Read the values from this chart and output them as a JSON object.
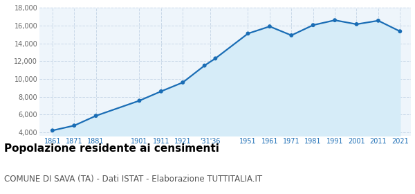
{
  "years": [
    1861,
    1871,
    1881,
    1901,
    1911,
    1921,
    1931,
    1936,
    1951,
    1961,
    1971,
    1981,
    1991,
    2001,
    2011,
    2021
  ],
  "population": [
    4200,
    4750,
    5850,
    7550,
    8600,
    9600,
    11500,
    12300,
    15100,
    15900,
    14900,
    16050,
    16600,
    16150,
    16550,
    15350
  ],
  "x_tick_labels": [
    "1861",
    "1871",
    "1881",
    "1901",
    "1911",
    "1921",
    "'31'36",
    "1951",
    "1961",
    "1971",
    "1981",
    "1991",
    "2001",
    "2011",
    "2021"
  ],
  "x_tick_positions": [
    1861,
    1871,
    1881,
    1901,
    1911,
    1921,
    1933.5,
    1951,
    1961,
    1971,
    1981,
    1991,
    2001,
    2011,
    2021
  ],
  "xlim": [
    1855,
    2026
  ],
  "ylim": [
    3600,
    18000
  ],
  "yticks": [
    4000,
    6000,
    8000,
    10000,
    12000,
    14000,
    16000,
    18000
  ],
  "ytick_labels": [
    "4,000",
    "6,000",
    "8,000",
    "10,000",
    "12,000",
    "14,000",
    "16,000",
    "18,000"
  ],
  "line_color": "#1a6db5",
  "fill_color": "#d6ecf8",
  "marker_color": "#1a6db5",
  "background_color": "#eef5fb",
  "grid_color": "#c8d8e8",
  "title": "Popolazione residente ai censimenti",
  "subtitle": "COMUNE DI SAVA (TA) - Dati ISTAT - Elaborazione TUTTITALIA.IT",
  "title_fontsize": 11,
  "subtitle_fontsize": 8.5,
  "tick_fontsize": 7,
  "line_width": 1.6,
  "marker_size": 18
}
